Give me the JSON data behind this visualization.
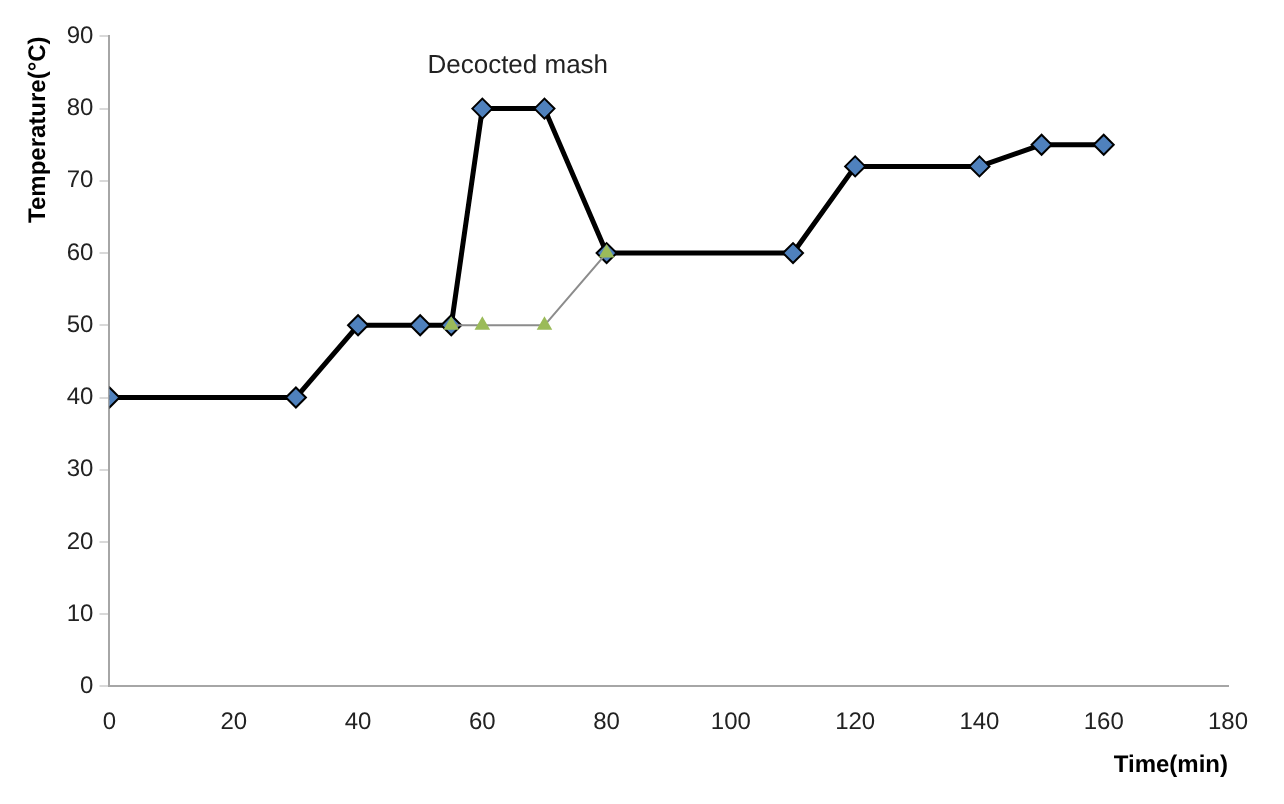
{
  "chart_data": {
    "type": "line",
    "xlabel": "Time(min)",
    "ylabel": "Temperature(°C)",
    "xlim": [
      0,
      180
    ],
    "xticks": [
      0,
      20,
      40,
      60,
      80,
      100,
      120,
      140,
      160,
      180
    ],
    "ylim": [
      0,
      90
    ],
    "yticks": [
      0,
      10,
      20,
      30,
      40,
      50,
      60,
      70,
      80,
      90
    ],
    "grid": false,
    "legend": false,
    "series": [
      {
        "color": "#4f81bd",
        "marker": "diamond",
        "x": [
          0,
          30,
          40,
          50,
          55,
          60,
          70,
          80,
          110,
          120,
          140,
          150,
          160
        ],
        "values": [
          40,
          40,
          50,
          50,
          50,
          80,
          80,
          60,
          60,
          72,
          72,
          75,
          75
        ]
      },
      {
        "color": "#9bbb59",
        "marker": "triangle",
        "x": [
          55,
          60,
          70,
          80
        ],
        "values": [
          50,
          50,
          50,
          60
        ]
      }
    ],
    "annotations": [
      "Decocted mash"
    ]
  }
}
